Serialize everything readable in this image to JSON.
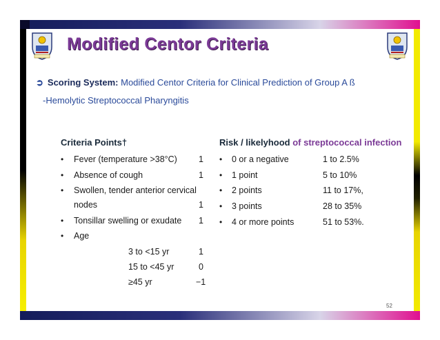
{
  "title": "Modified Centor Criteria",
  "subtitle": {
    "label": "Scoring System:",
    "text": "Modified Centor Criteria for Clinical Prediction of Group A ß",
    "continuation": "-Hemolytic Streptococcal Pharyngitis"
  },
  "criteria": {
    "header": "Criteria Points†",
    "items": [
      {
        "label": "Fever (temperature >38°C)",
        "points": "1"
      },
      {
        "label": "Absence of cough",
        "points": "1"
      },
      {
        "label": "Swollen, tender anterior cervical",
        "points": ""
      },
      {
        "label": "nodes",
        "points": "1"
      },
      {
        "label": "Tonsillar swelling or exudate",
        "points": "1"
      },
      {
        "label": "Age",
        "points": ""
      }
    ],
    "age_rows": [
      {
        "label": "3 to <15 yr",
        "points": "1"
      },
      {
        "label": "15 to <45 yr",
        "points": "0"
      },
      {
        "label": "≥45 yr",
        "points": "−1"
      }
    ]
  },
  "risk": {
    "header": "Risk / likelyhood",
    "header_suffix": "of streptococcal infection",
    "items": [
      {
        "label": "0 or a negative",
        "value": "1 to 2.5%"
      },
      {
        "label": "1 point",
        "value": "5 to 10%"
      },
      {
        "label": "2 points",
        "value": "11 to 17%,"
      },
      {
        "label": "3 points",
        "value": "28 to 35%"
      },
      {
        "label": "4 or more points",
        "value": "51 to 53%."
      }
    ]
  },
  "slide_number": "52",
  "icons": {
    "bullet": "•",
    "arrow": "arrow-bullet-icon",
    "crest": "university-crest-icon"
  },
  "colors": {
    "title": "#7b3a96",
    "subtitle": "#2a4a9a"
  }
}
